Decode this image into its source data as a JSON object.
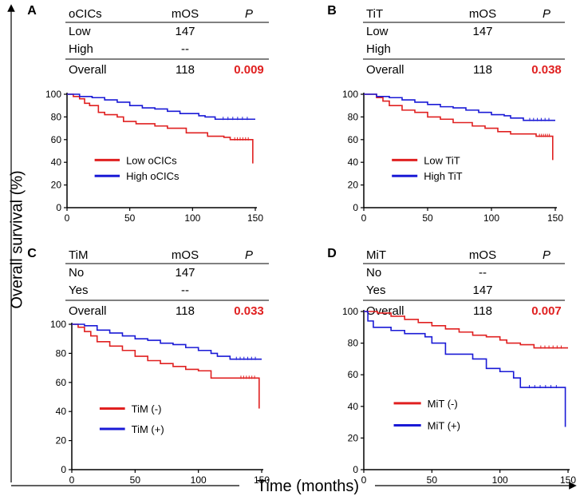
{
  "figure": {
    "ylabel": "Overall survival (%)",
    "xlabel": "Time (months)"
  },
  "colors": {
    "low": "#e02020",
    "high": "#1a1ad6",
    "pvalue": "#e02020",
    "axis": "#000000"
  },
  "chart_data": [
    {
      "panel": "A",
      "type": "line",
      "table": {
        "header": [
          "oCICs",
          "mOS",
          "P"
        ],
        "rows": [
          [
            "Low",
            "147",
            ""
          ],
          [
            "High",
            "--",
            ""
          ]
        ],
        "overall": [
          "Overall",
          "118",
          "0.009"
        ]
      },
      "xlim": [
        0,
        150
      ],
      "ylim": [
        0,
        100
      ],
      "xticks": [
        0,
        50,
        100,
        150
      ],
      "yticks": [
        0,
        20,
        40,
        60,
        80,
        100
      ],
      "series": [
        {
          "name": "Low oCICs",
          "color": "#e02020",
          "drop": 39,
          "points": [
            [
              0,
              100
            ],
            [
              5,
              98
            ],
            [
              10,
              96
            ],
            [
              14,
              92
            ],
            [
              18,
              90
            ],
            [
              25,
              84
            ],
            [
              30,
              82
            ],
            [
              40,
              80
            ],
            [
              45,
              76
            ],
            [
              55,
              74
            ],
            [
              70,
              72
            ],
            [
              80,
              70
            ],
            [
              95,
              66
            ],
            [
              110,
              66
            ],
            [
              112,
              63
            ],
            [
              125,
              62
            ],
            [
              130,
              60
            ],
            [
              148,
              60
            ]
          ]
        },
        {
          "name": "High oCICs",
          "color": "#1a1ad6",
          "drop": null,
          "points": [
            [
              0,
              100
            ],
            [
              10,
              98
            ],
            [
              20,
              97
            ],
            [
              30,
              95
            ],
            [
              40,
              93
            ],
            [
              50,
              90
            ],
            [
              60,
              88
            ],
            [
              70,
              87
            ],
            [
              80,
              85
            ],
            [
              90,
              83
            ],
            [
              100,
              83
            ],
            [
              105,
              81
            ],
            [
              110,
              80
            ],
            [
              118,
              78
            ],
            [
              150,
              78
            ]
          ]
        }
      ]
    },
    {
      "panel": "B",
      "type": "line",
      "table": {
        "header": [
          "TiT",
          "mOS",
          "P"
        ],
        "rows": [
          [
            "Low",
            "147",
            ""
          ],
          [
            "High",
            "",
            ""
          ]
        ],
        "overall": [
          "Overall",
          "118",
          "0.038"
        ]
      },
      "xlim": [
        0,
        150
      ],
      "ylim": [
        0,
        100
      ],
      "xticks": [
        0,
        50,
        100,
        150
      ],
      "yticks": [
        0,
        20,
        40,
        60,
        80,
        100
      ],
      "series": [
        {
          "name": "Low TiT",
          "color": "#e02020",
          "drop": 42,
          "points": [
            [
              0,
              100
            ],
            [
              10,
              97
            ],
            [
              15,
              94
            ],
            [
              20,
              90
            ],
            [
              30,
              86
            ],
            [
              40,
              84
            ],
            [
              50,
              80
            ],
            [
              60,
              78
            ],
            [
              70,
              75
            ],
            [
              85,
              72
            ],
            [
              95,
              70
            ],
            [
              105,
              67
            ],
            [
              115,
              65
            ],
            [
              130,
              65
            ],
            [
              135,
              63
            ],
            [
              148,
              63
            ]
          ]
        },
        {
          "name": "High TiT",
          "color": "#1a1ad6",
          "drop": null,
          "points": [
            [
              0,
              100
            ],
            [
              10,
              98
            ],
            [
              20,
              97
            ],
            [
              30,
              95
            ],
            [
              40,
              93
            ],
            [
              50,
              91
            ],
            [
              60,
              89
            ],
            [
              70,
              88
            ],
            [
              80,
              86
            ],
            [
              90,
              84
            ],
            [
              100,
              82
            ],
            [
              110,
              81
            ],
            [
              115,
              79
            ],
            [
              125,
              77
            ],
            [
              150,
              77
            ]
          ]
        }
      ]
    },
    {
      "panel": "C",
      "type": "line",
      "table": {
        "header": [
          "TiM",
          "mOS",
          "P"
        ],
        "rows": [
          [
            "No",
            "147",
            ""
          ],
          [
            "Yes",
            "--",
            ""
          ]
        ],
        "overall": [
          "Overall",
          "118",
          "0.033"
        ]
      },
      "xlim": [
        0,
        150
      ],
      "ylim": [
        0,
        100
      ],
      "xticks": [
        0,
        50,
        100,
        150
      ],
      "yticks": [
        0,
        20,
        40,
        60,
        80,
        100
      ],
      "series": [
        {
          "name": "TiM (-)",
          "color": "#e02020",
          "drop": 42,
          "points": [
            [
              0,
              100
            ],
            [
              5,
              98
            ],
            [
              10,
              95
            ],
            [
              15,
              92
            ],
            [
              20,
              88
            ],
            [
              30,
              85
            ],
            [
              40,
              82
            ],
            [
              50,
              78
            ],
            [
              60,
              75
            ],
            [
              70,
              73
            ],
            [
              80,
              71
            ],
            [
              90,
              69
            ],
            [
              100,
              68
            ],
            [
              110,
              63
            ],
            [
              130,
              63
            ],
            [
              148,
              63
            ]
          ]
        },
        {
          "name": "TiM (+)",
          "color": "#1a1ad6",
          "drop": null,
          "points": [
            [
              0,
              100
            ],
            [
              10,
              99
            ],
            [
              20,
              96
            ],
            [
              30,
              94
            ],
            [
              40,
              92
            ],
            [
              50,
              90
            ],
            [
              60,
              89
            ],
            [
              70,
              87
            ],
            [
              80,
              86
            ],
            [
              90,
              84
            ],
            [
              100,
              82
            ],
            [
              110,
              80
            ],
            [
              115,
              78
            ],
            [
              125,
              76
            ],
            [
              150,
              76
            ]
          ]
        }
      ]
    },
    {
      "panel": "D",
      "type": "line",
      "table": {
        "header": [
          "MiT",
          "mOS",
          "P"
        ],
        "rows": [
          [
            "No",
            "--",
            ""
          ],
          [
            "Yes",
            "147",
            ""
          ]
        ],
        "overall": [
          "Overall",
          "118",
          "0.007"
        ]
      },
      "xlim": [
        0,
        150
      ],
      "ylim": [
        0,
        100
      ],
      "xticks": [
        0,
        50,
        100,
        150
      ],
      "yticks": [
        0,
        20,
        40,
        60,
        80,
        100
      ],
      "series": [
        {
          "name": "MiT (-)",
          "color": "#e02020",
          "drop": null,
          "points": [
            [
              0,
              100
            ],
            [
              10,
              99
            ],
            [
              20,
              97
            ],
            [
              30,
              95
            ],
            [
              40,
              93
            ],
            [
              50,
              91
            ],
            [
              60,
              89
            ],
            [
              70,
              87
            ],
            [
              80,
              85
            ],
            [
              90,
              84
            ],
            [
              100,
              82
            ],
            [
              105,
              80
            ],
            [
              115,
              79
            ],
            [
              125,
              77
            ],
            [
              150,
              77
            ]
          ]
        },
        {
          "name": "MiT (+)",
          "color": "#1a1ad6",
          "drop": 27,
          "points": [
            [
              0,
              100
            ],
            [
              3,
              94
            ],
            [
              7,
              90
            ],
            [
              20,
              88
            ],
            [
              30,
              86
            ],
            [
              45,
              84
            ],
            [
              50,
              80
            ],
            [
              60,
              73
            ],
            [
              80,
              70
            ],
            [
              90,
              64
            ],
            [
              100,
              62
            ],
            [
              110,
              58
            ],
            [
              115,
              52
            ],
            [
              148,
              52
            ]
          ]
        }
      ]
    }
  ]
}
